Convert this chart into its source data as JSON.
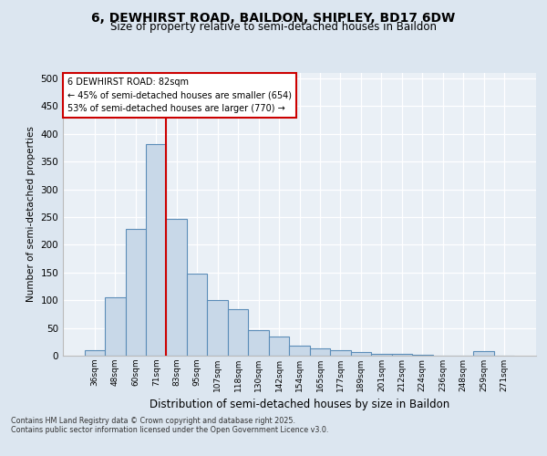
{
  "title_line1": "6, DEWHIRST ROAD, BAILDON, SHIPLEY, BD17 6DW",
  "title_line2": "Size of property relative to semi-detached houses in Baildon",
  "xlabel": "Distribution of semi-detached houses by size in Baildon",
  "ylabel": "Number of semi-detached properties",
  "categories": [
    "36sqm",
    "48sqm",
    "60sqm",
    "71sqm",
    "83sqm",
    "95sqm",
    "107sqm",
    "118sqm",
    "130sqm",
    "142sqm",
    "154sqm",
    "165sqm",
    "177sqm",
    "189sqm",
    "201sqm",
    "212sqm",
    "224sqm",
    "236sqm",
    "248sqm",
    "259sqm",
    "271sqm"
  ],
  "values": [
    10,
    105,
    228,
    381,
    246,
    148,
    101,
    84,
    46,
    34,
    18,
    13,
    10,
    6,
    4,
    4,
    1,
    0,
    0,
    8,
    0
  ],
  "bar_color": "#c8d8e8",
  "bar_edge_color": "#5b8db8",
  "vline_color": "#cc0000",
  "pct_smaller": 45,
  "n_smaller": 654,
  "pct_larger": 53,
  "n_larger": 770,
  "annotation_label": "6 DEWHIRST ROAD: 82sqm",
  "annotation_box_color": "#ffffff",
  "annotation_box_edge": "#cc0000",
  "ylim": [
    0,
    510
  ],
  "yticks": [
    0,
    50,
    100,
    150,
    200,
    250,
    300,
    350,
    400,
    450,
    500
  ],
  "footer1": "Contains HM Land Registry data © Crown copyright and database right 2025.",
  "footer2": "Contains public sector information licensed under the Open Government Licence v3.0.",
  "bg_color": "#dce6f0",
  "plot_bg_color": "#eaf0f6"
}
